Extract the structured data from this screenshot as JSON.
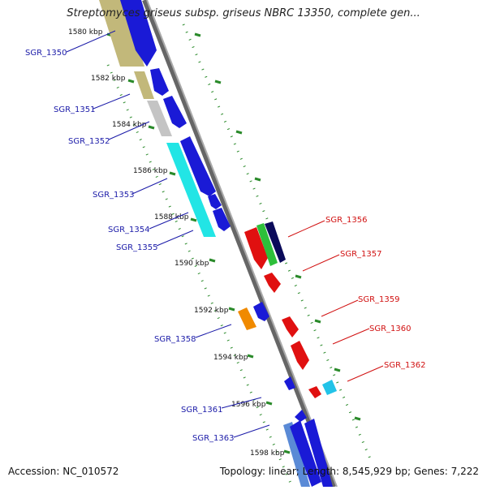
{
  "title": "Streptomyces griseus subsp. griseus NBRC 13350, complete gen...",
  "footer": {
    "accession": "Accession: NC_010572",
    "summary": "Topology: linear; Length: 8,545,929 bp; Genes: 7,222"
  },
  "colors": {
    "blue_label": "#1a1aa8",
    "red_label": "#d11010",
    "axis": "#888888",
    "tick": "#2a8a2a"
  },
  "scale": {
    "unit": "kbp",
    "ticks": [
      {
        "label": "1580 kbp",
        "kbp": 1580
      },
      {
        "label": "1582 kbp",
        "kbp": 1582
      },
      {
        "label": "1584 kbp",
        "kbp": 1584
      },
      {
        "label": "1586 kbp",
        "kbp": 1586
      },
      {
        "label": "1588 kbp",
        "kbp": 1588
      },
      {
        "label": "1590 kbp",
        "kbp": 1590
      },
      {
        "label": "1592 kbp",
        "kbp": 1592
      },
      {
        "label": "1594 kbp",
        "kbp": 1594
      },
      {
        "label": "1596 kbp",
        "kbp": 1596
      },
      {
        "label": "1598 kbp",
        "kbp": 1598
      }
    ]
  },
  "gene_labels_left": [
    "SGR_1350",
    "SGR_1351",
    "SGR_1352",
    "SGR_1353",
    "SGR_1354",
    "SGR_1355",
    "SGR_1358",
    "SGR_1361",
    "SGR_1363"
  ],
  "gene_labels_right": [
    "SGR_1356",
    "SGR_1357",
    "SGR_1359",
    "SGR_1360",
    "SGR_1362"
  ]
}
